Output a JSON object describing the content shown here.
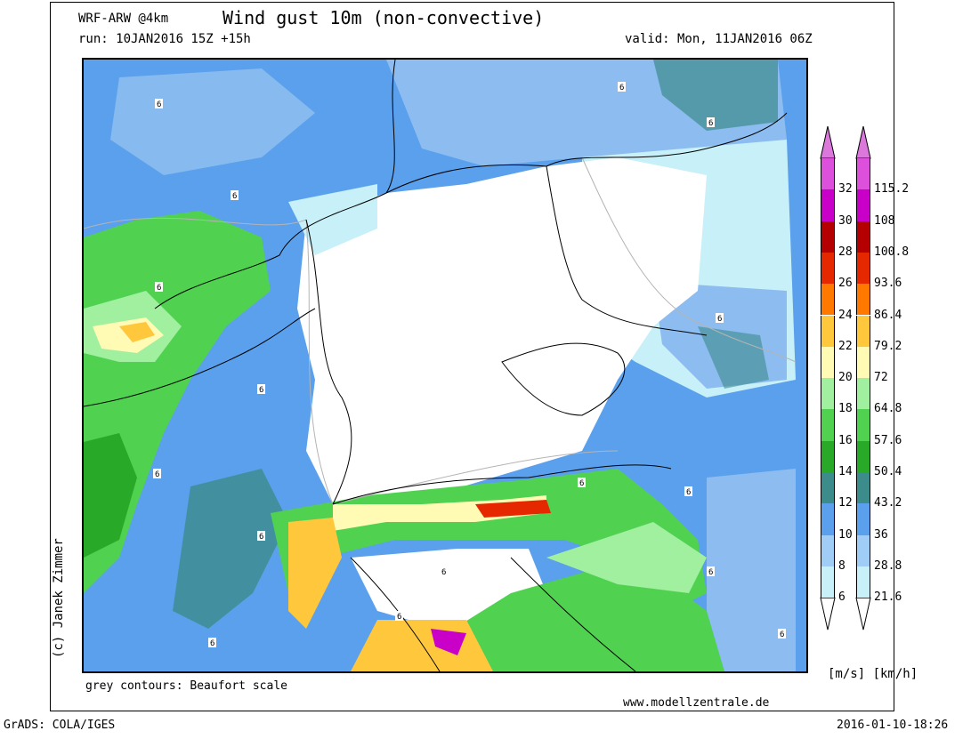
{
  "header": {
    "model": "WRF-ARW @4km",
    "title": "Wind gust 10m (non-convective)",
    "run": "run: 10JAN2016 15Z +15h",
    "valid": "valid: Mon, 11JAN2016 06Z"
  },
  "footer": {
    "author": "(c) Janek Zimmer",
    "contour_note": "grey contours: Beaufort scale",
    "website": "www.modellzentrale.de",
    "software": "GrADS: COLA/IGES",
    "timestamp": "2016-01-10-18:26"
  },
  "legend": {
    "units": "[m/s] [km/h]",
    "ms_labels": [
      "6",
      "8",
      "10",
      "12",
      "14",
      "16",
      "18",
      "20",
      "22",
      "24",
      "26",
      "28",
      "30",
      "32"
    ],
    "kmh_labels": [
      "21.6",
      "28.8",
      "36",
      "43.2",
      "50.4",
      "57.6",
      "64.8",
      "72",
      "79.2",
      "86.4",
      "93.6",
      "100.8",
      "108",
      "115.2"
    ],
    "colors": [
      "#c8f0f8",
      "#a0cdf5",
      "#5aa0ec",
      "#3c8c8c",
      "#28aa28",
      "#50d250",
      "#a0f0a0",
      "#fffab4",
      "#ffc83c",
      "#ff7800",
      "#e62800",
      "#b40000",
      "#c800c8",
      "#dc50dc"
    ],
    "top_arrow_color": "#dc78dc"
  },
  "map": {
    "beaufort_label": "6"
  }
}
